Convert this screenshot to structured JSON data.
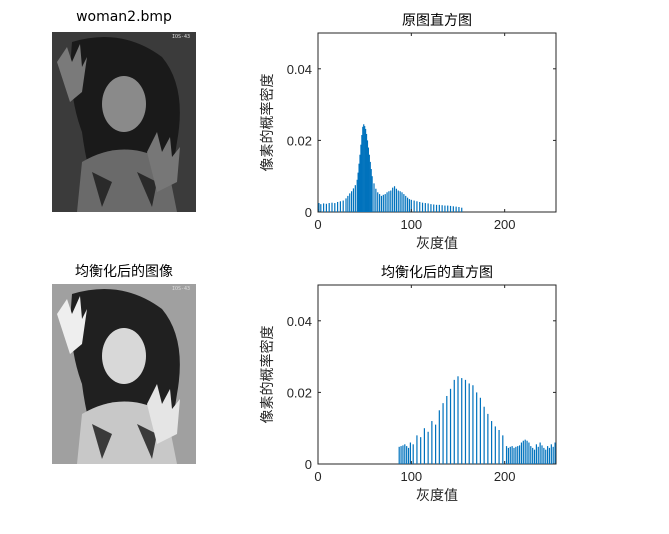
{
  "images": [
    {
      "title": "woman2.bmp",
      "tone": "dark",
      "corner_text": "IOS-43"
    },
    {
      "title": "均衡化后的图像",
      "tone": "light",
      "corner_text": "IOS-43"
    }
  ],
  "colors": {
    "bar": "#0072BD",
    "axis": "#262626"
  },
  "chart_data": [
    {
      "type": "bar",
      "title": "原图直方图",
      "xlabel": "灰度值",
      "ylabel": "像素的概率密度",
      "xlim": [
        0,
        255
      ],
      "ylim": [
        0,
        0.05
      ],
      "xticks": [
        "0",
        "100",
        "200"
      ],
      "yticks": [
        "0",
        "0.02",
        "0.04"
      ],
      "x": [
        1,
        3,
        6,
        9,
        12,
        15,
        18,
        21,
        24,
        27,
        30,
        32,
        34,
        36,
        38,
        40,
        42,
        43,
        44,
        45,
        46,
        47,
        48,
        49,
        50,
        51,
        52,
        53,
        54,
        55,
        56,
        57,
        58,
        60,
        62,
        64,
        66,
        68,
        70,
        72,
        74,
        76,
        78,
        80,
        82,
        84,
        86,
        88,
        90,
        92,
        94,
        96,
        98,
        100,
        103,
        106,
        109,
        112,
        115,
        118,
        121,
        124,
        127,
        130,
        133,
        136,
        139,
        142,
        145,
        148,
        151,
        154
      ],
      "values": [
        0.0025,
        0.0022,
        0.0024,
        0.0023,
        0.0025,
        0.0026,
        0.0025,
        0.0028,
        0.003,
        0.0032,
        0.0038,
        0.0045,
        0.0052,
        0.0058,
        0.0066,
        0.0075,
        0.009,
        0.011,
        0.0135,
        0.016,
        0.0188,
        0.0215,
        0.0238,
        0.0245,
        0.024,
        0.0232,
        0.0218,
        0.02,
        0.018,
        0.016,
        0.014,
        0.012,
        0.01,
        0.008,
        0.0065,
        0.0055,
        0.005,
        0.0045,
        0.0048,
        0.005,
        0.0055,
        0.0058,
        0.006,
        0.0068,
        0.0072,
        0.0065,
        0.006,
        0.0058,
        0.0055,
        0.005,
        0.0045,
        0.004,
        0.0036,
        0.0034,
        0.0032,
        0.003,
        0.0028,
        0.0026,
        0.0025,
        0.0024,
        0.0022,
        0.0021,
        0.002,
        0.002,
        0.0019,
        0.0018,
        0.0018,
        0.0017,
        0.0016,
        0.0015,
        0.0014,
        0.0012
      ]
    },
    {
      "type": "bar",
      "title": "均衡化后的直方图",
      "xlabel": "灰度值",
      "ylabel": "像素的概率密度",
      "xlim": [
        0,
        255
      ],
      "ylim": [
        0,
        0.05
      ],
      "xticks": [
        "0",
        "100",
        "200"
      ],
      "yticks": [
        "0",
        "0.02",
        "0.04"
      ],
      "x": [
        87,
        89,
        91,
        93,
        95,
        97,
        99,
        102,
        106,
        110,
        114,
        118,
        122,
        126,
        130,
        134,
        138,
        142,
        146,
        150,
        154,
        158,
        162,
        166,
        170,
        174,
        178,
        182,
        186,
        190,
        194,
        198,
        202,
        204,
        206,
        208,
        210,
        212,
        214,
        216,
        218,
        220,
        222,
        224,
        226,
        228,
        230,
        232,
        234,
        236,
        238,
        240,
        242,
        244,
        246,
        248,
        250,
        252,
        254
      ],
      "values": [
        0.0048,
        0.005,
        0.0052,
        0.0055,
        0.005,
        0.0045,
        0.006,
        0.0055,
        0.008,
        0.0075,
        0.01,
        0.009,
        0.012,
        0.011,
        0.015,
        0.017,
        0.019,
        0.021,
        0.0235,
        0.0245,
        0.024,
        0.0235,
        0.0225,
        0.022,
        0.02,
        0.0185,
        0.016,
        0.014,
        0.012,
        0.0105,
        0.0095,
        0.008,
        0.005,
        0.0045,
        0.0048,
        0.005,
        0.0045,
        0.0048,
        0.005,
        0.0052,
        0.006,
        0.0065,
        0.0068,
        0.0065,
        0.006,
        0.005,
        0.0045,
        0.004,
        0.0055,
        0.0048,
        0.006,
        0.0052,
        0.0045,
        0.004,
        0.005,
        0.0045,
        0.0055,
        0.0048,
        0.006
      ]
    }
  ]
}
